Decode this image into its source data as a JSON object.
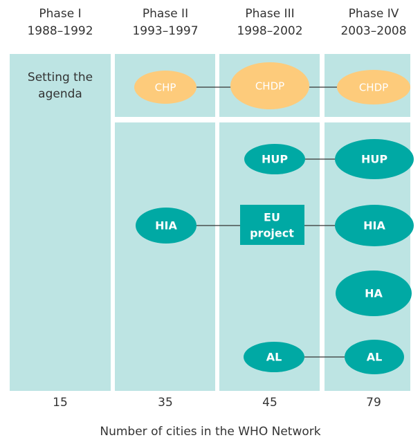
{
  "phases": [
    {
      "name": "Phase I",
      "years": "1988–1992",
      "cities": 15
    },
    {
      "name": "Phase II",
      "years": "1993–1997",
      "cities": 35
    },
    {
      "name": "Phase III",
      "years": "1998–2002",
      "cities": 45
    },
    {
      "name": "Phase IV",
      "years": "2003–2008",
      "cities": 79
    }
  ],
  "phase1_text": [
    "Setting the",
    "agenda"
  ],
  "nodes": [
    {
      "label": "CHP"
    },
    {
      "label": "CHDP"
    },
    {
      "label": "CHDP"
    },
    {
      "label": "HUP"
    },
    {
      "label": "HUP"
    },
    {
      "label": "HIA"
    },
    {
      "label": "EU"
    },
    {
      "label": "project"
    },
    {
      "label": "HIA"
    },
    {
      "label": "HA"
    },
    {
      "label": "AL"
    },
    {
      "label": "AL"
    }
  ],
  "footer": "Number of cities in the WHO Network"
}
